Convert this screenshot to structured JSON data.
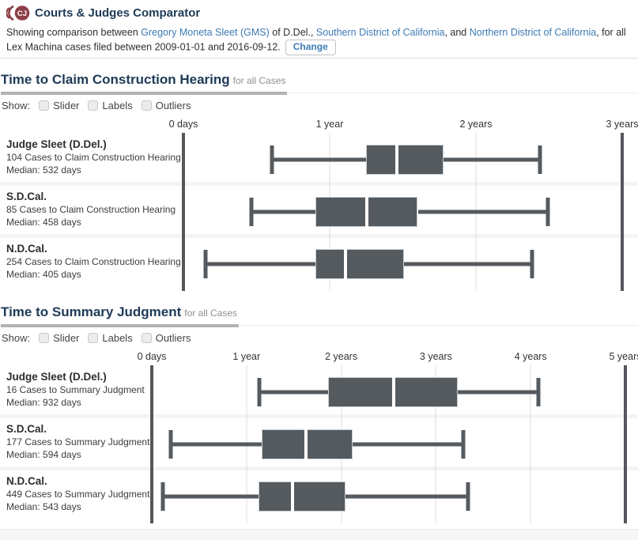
{
  "header": {
    "logo_text": "CJ",
    "title": "Courts & Judges Comparator",
    "subtitle": {
      "prefix": "Showing comparison between ",
      "link1": "Gregory Moneta Sleet (GMS)",
      "mid1": " of D.Del., ",
      "link2": "Southern District of California",
      "mid2": ", and ",
      "link3": "Northern District of California",
      "suffix": ", for all Lex Machina cases filed between 2009-01-01 and 2016-09-12.",
      "change_button": "Change"
    }
  },
  "colors": {
    "accent_navy": "#1e3a57",
    "link_blue": "#3d7ab5",
    "box_gray": "#555a5f",
    "grid_light": "#dcdcdc",
    "grid_dark": "#54585c",
    "logo_maroon": "#8d3f47"
  },
  "chart_data": [
    {
      "type": "boxplot",
      "title": "Time to Claim Construction Hearing",
      "title_suffix": "for all Cases",
      "show_label": "Show:",
      "show_options": [
        "Slider",
        "Labels",
        "Outliers"
      ],
      "axis": {
        "unit": "days",
        "tick_labels": [
          "0 days",
          "1 year",
          "2 years",
          "3 years"
        ],
        "max_days": 1095,
        "grid": true
      },
      "rows": [
        {
          "name": "Judge Sleet (D.Del.)",
          "cases_line": "104 Cases to Claim Construction Hearing",
          "median_line": "Median: 532 days",
          "values_days": {
            "whisker_low": 220,
            "q1": 455,
            "median": 532,
            "q3": 650,
            "whisker_high": 890
          }
        },
        {
          "name": "S.D.Cal.",
          "cases_line": "85 Cases to Claim Construction Hearing",
          "median_line": "Median: 458 days",
          "values_days": {
            "whisker_low": 170,
            "q1": 330,
            "median": 458,
            "q3": 585,
            "whisker_high": 910
          }
        },
        {
          "name": "N.D.Cal.",
          "cases_line": "254 Cases to Claim Construction Hearing",
          "median_line": "Median: 405 days",
          "values_days": {
            "whisker_low": 55,
            "q1": 330,
            "median": 405,
            "q3": 550,
            "whisker_high": 870
          }
        }
      ]
    },
    {
      "type": "boxplot",
      "title": "Time to Summary Judgment",
      "title_suffix": "for all Cases",
      "show_label": "Show:",
      "show_options": [
        "Slider",
        "Labels",
        "Outliers"
      ],
      "axis": {
        "unit": "days",
        "tick_labels": [
          "0 days",
          "1 year",
          "2 years",
          "3 years",
          "4 years",
          "5 years"
        ],
        "max_days": 1825,
        "grid": true
      },
      "rows": [
        {
          "name": "Judge Sleet (D.Del.)",
          "cases_line": "16 Cases to Summary Judgment",
          "median_line": "Median: 932 days",
          "values_days": {
            "whisker_low": 415,
            "q1": 680,
            "median": 932,
            "q3": 1180,
            "whisker_high": 1490
          }
        },
        {
          "name": "S.D.Cal.",
          "cases_line": "177 Cases to Summary Judgment",
          "median_line": "Median: 594 days",
          "values_days": {
            "whisker_low": 73,
            "q1": 425,
            "median": 594,
            "q3": 775,
            "whisker_high": 1200
          }
        },
        {
          "name": "N.D.Cal.",
          "cases_line": "449 Cases to Summary Judgment",
          "median_line": "Median: 543 days",
          "values_days": {
            "whisker_low": 43,
            "q1": 410,
            "median": 543,
            "q3": 745,
            "whisker_high": 1220
          }
        }
      ]
    }
  ]
}
